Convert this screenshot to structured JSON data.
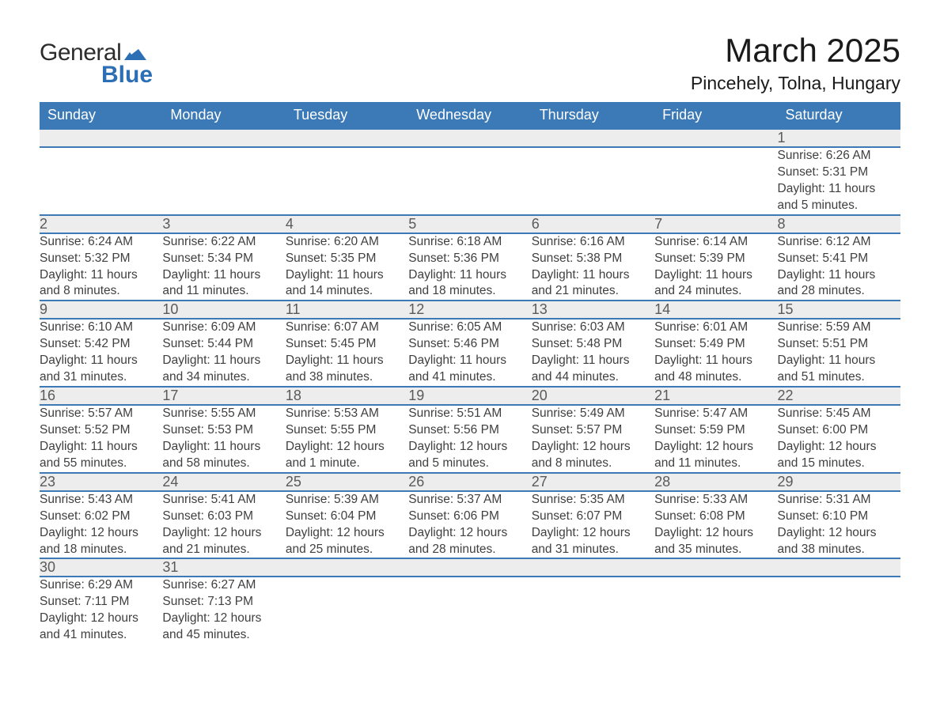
{
  "brand": {
    "word1": "General",
    "word2": "Blue"
  },
  "title": "March 2025",
  "location": "Pincehely, Tolna, Hungary",
  "colors": {
    "header_bg": "#3b79b7",
    "header_text": "#ffffff",
    "daynum_bg": "#ededed",
    "daynum_text": "#5a5a5a",
    "body_text": "#404040",
    "rule": "#3b79b7",
    "logo_blue": "#2d6fb5"
  },
  "typography": {
    "title_fontsize": 42,
    "location_fontsize": 23,
    "weekday_fontsize": 18,
    "daynum_fontsize": 18,
    "cell_fontsize": 15.5
  },
  "weekdays": [
    "Sunday",
    "Monday",
    "Tuesday",
    "Wednesday",
    "Thursday",
    "Friday",
    "Saturday"
  ],
  "weeks": [
    [
      null,
      null,
      null,
      null,
      null,
      null,
      {
        "n": "1",
        "sr": "Sunrise: 6:26 AM",
        "ss": "Sunset: 5:31 PM",
        "d1": "Daylight: 11 hours",
        "d2": "and 5 minutes."
      }
    ],
    [
      {
        "n": "2",
        "sr": "Sunrise: 6:24 AM",
        "ss": "Sunset: 5:32 PM",
        "d1": "Daylight: 11 hours",
        "d2": "and 8 minutes."
      },
      {
        "n": "3",
        "sr": "Sunrise: 6:22 AM",
        "ss": "Sunset: 5:34 PM",
        "d1": "Daylight: 11 hours",
        "d2": "and 11 minutes."
      },
      {
        "n": "4",
        "sr": "Sunrise: 6:20 AM",
        "ss": "Sunset: 5:35 PM",
        "d1": "Daylight: 11 hours",
        "d2": "and 14 minutes."
      },
      {
        "n": "5",
        "sr": "Sunrise: 6:18 AM",
        "ss": "Sunset: 5:36 PM",
        "d1": "Daylight: 11 hours",
        "d2": "and 18 minutes."
      },
      {
        "n": "6",
        "sr": "Sunrise: 6:16 AM",
        "ss": "Sunset: 5:38 PM",
        "d1": "Daylight: 11 hours",
        "d2": "and 21 minutes."
      },
      {
        "n": "7",
        "sr": "Sunrise: 6:14 AM",
        "ss": "Sunset: 5:39 PM",
        "d1": "Daylight: 11 hours",
        "d2": "and 24 minutes."
      },
      {
        "n": "8",
        "sr": "Sunrise: 6:12 AM",
        "ss": "Sunset: 5:41 PM",
        "d1": "Daylight: 11 hours",
        "d2": "and 28 minutes."
      }
    ],
    [
      {
        "n": "9",
        "sr": "Sunrise: 6:10 AM",
        "ss": "Sunset: 5:42 PM",
        "d1": "Daylight: 11 hours",
        "d2": "and 31 minutes."
      },
      {
        "n": "10",
        "sr": "Sunrise: 6:09 AM",
        "ss": "Sunset: 5:44 PM",
        "d1": "Daylight: 11 hours",
        "d2": "and 34 minutes."
      },
      {
        "n": "11",
        "sr": "Sunrise: 6:07 AM",
        "ss": "Sunset: 5:45 PM",
        "d1": "Daylight: 11 hours",
        "d2": "and 38 minutes."
      },
      {
        "n": "12",
        "sr": "Sunrise: 6:05 AM",
        "ss": "Sunset: 5:46 PM",
        "d1": "Daylight: 11 hours",
        "d2": "and 41 minutes."
      },
      {
        "n": "13",
        "sr": "Sunrise: 6:03 AM",
        "ss": "Sunset: 5:48 PM",
        "d1": "Daylight: 11 hours",
        "d2": "and 44 minutes."
      },
      {
        "n": "14",
        "sr": "Sunrise: 6:01 AM",
        "ss": "Sunset: 5:49 PM",
        "d1": "Daylight: 11 hours",
        "d2": "and 48 minutes."
      },
      {
        "n": "15",
        "sr": "Sunrise: 5:59 AM",
        "ss": "Sunset: 5:51 PM",
        "d1": "Daylight: 11 hours",
        "d2": "and 51 minutes."
      }
    ],
    [
      {
        "n": "16",
        "sr": "Sunrise: 5:57 AM",
        "ss": "Sunset: 5:52 PM",
        "d1": "Daylight: 11 hours",
        "d2": "and 55 minutes."
      },
      {
        "n": "17",
        "sr": "Sunrise: 5:55 AM",
        "ss": "Sunset: 5:53 PM",
        "d1": "Daylight: 11 hours",
        "d2": "and 58 minutes."
      },
      {
        "n": "18",
        "sr": "Sunrise: 5:53 AM",
        "ss": "Sunset: 5:55 PM",
        "d1": "Daylight: 12 hours",
        "d2": "and 1 minute."
      },
      {
        "n": "19",
        "sr": "Sunrise: 5:51 AM",
        "ss": "Sunset: 5:56 PM",
        "d1": "Daylight: 12 hours",
        "d2": "and 5 minutes."
      },
      {
        "n": "20",
        "sr": "Sunrise: 5:49 AM",
        "ss": "Sunset: 5:57 PM",
        "d1": "Daylight: 12 hours",
        "d2": "and 8 minutes."
      },
      {
        "n": "21",
        "sr": "Sunrise: 5:47 AM",
        "ss": "Sunset: 5:59 PM",
        "d1": "Daylight: 12 hours",
        "d2": "and 11 minutes."
      },
      {
        "n": "22",
        "sr": "Sunrise: 5:45 AM",
        "ss": "Sunset: 6:00 PM",
        "d1": "Daylight: 12 hours",
        "d2": "and 15 minutes."
      }
    ],
    [
      {
        "n": "23",
        "sr": "Sunrise: 5:43 AM",
        "ss": "Sunset: 6:02 PM",
        "d1": "Daylight: 12 hours",
        "d2": "and 18 minutes."
      },
      {
        "n": "24",
        "sr": "Sunrise: 5:41 AM",
        "ss": "Sunset: 6:03 PM",
        "d1": "Daylight: 12 hours",
        "d2": "and 21 minutes."
      },
      {
        "n": "25",
        "sr": "Sunrise: 5:39 AM",
        "ss": "Sunset: 6:04 PM",
        "d1": "Daylight: 12 hours",
        "d2": "and 25 minutes."
      },
      {
        "n": "26",
        "sr": "Sunrise: 5:37 AM",
        "ss": "Sunset: 6:06 PM",
        "d1": "Daylight: 12 hours",
        "d2": "and 28 minutes."
      },
      {
        "n": "27",
        "sr": "Sunrise: 5:35 AM",
        "ss": "Sunset: 6:07 PM",
        "d1": "Daylight: 12 hours",
        "d2": "and 31 minutes."
      },
      {
        "n": "28",
        "sr": "Sunrise: 5:33 AM",
        "ss": "Sunset: 6:08 PM",
        "d1": "Daylight: 12 hours",
        "d2": "and 35 minutes."
      },
      {
        "n": "29",
        "sr": "Sunrise: 5:31 AM",
        "ss": "Sunset: 6:10 PM",
        "d1": "Daylight: 12 hours",
        "d2": "and 38 minutes."
      }
    ],
    [
      {
        "n": "30",
        "sr": "Sunrise: 6:29 AM",
        "ss": "Sunset: 7:11 PM",
        "d1": "Daylight: 12 hours",
        "d2": "and 41 minutes."
      },
      {
        "n": "31",
        "sr": "Sunrise: 6:27 AM",
        "ss": "Sunset: 7:13 PM",
        "d1": "Daylight: 12 hours",
        "d2": "and 45 minutes."
      },
      null,
      null,
      null,
      null,
      null
    ]
  ]
}
